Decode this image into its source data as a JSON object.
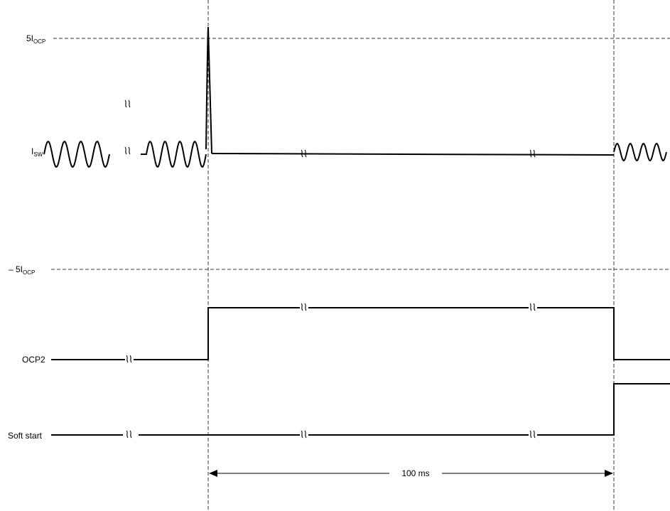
{
  "labels": {
    "pos_limit_prefix": "5I",
    "pos_limit_sub": "OCP",
    "neg_limit_prefix": "– 5I",
    "neg_limit_sub": "OCP",
    "isw_main": "I",
    "isw_sub": "SW",
    "ocp2": "OCP2",
    "soft_start": "Soft start",
    "duration": "100 ms"
  }
}
